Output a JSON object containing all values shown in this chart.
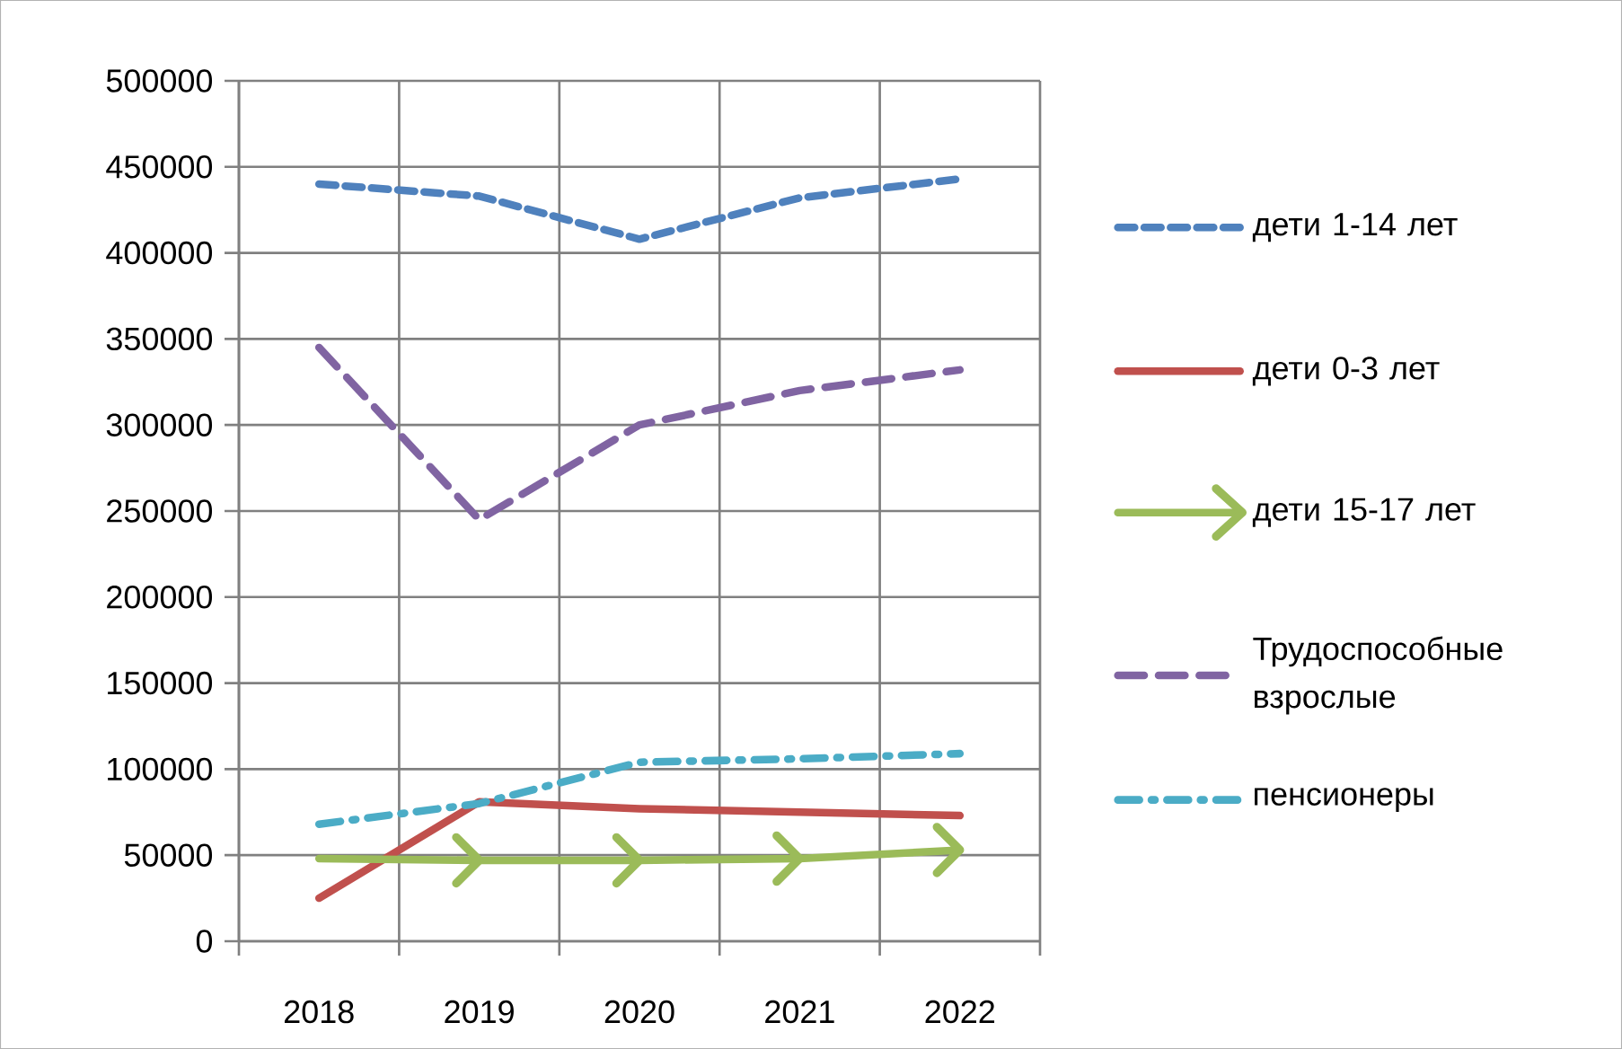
{
  "chart_data": {
    "type": "line",
    "categories": [
      "2018",
      "2019",
      "2020",
      "2021",
      "2022"
    ],
    "series": [
      {
        "name": "дети 1-14 лет",
        "color": "#4f81bd",
        "line_style": "dashed",
        "values": [
          440000,
          433000,
          408000,
          432000,
          443000
        ]
      },
      {
        "name": "дети 0-3 лет",
        "color": "#c0504d",
        "line_style": "solid",
        "values": [
          25000,
          81000,
          77000,
          75000,
          73000
        ]
      },
      {
        "name": "дети 15-17 лет",
        "color": "#9bbb59",
        "line_style": "solid",
        "marker": "cross",
        "values": [
          48000,
          47000,
          47000,
          48000,
          53000
        ]
      },
      {
        "name": "Трудоспособные взрослые",
        "color": "#8064a2",
        "line_style": "dashed",
        "values": [
          345000,
          245000,
          300000,
          320000,
          332000
        ]
      },
      {
        "name": "пенсионеры",
        "color": "#4bacc6",
        "line_style": "dashdot",
        "values": [
          68000,
          80000,
          104000,
          106000,
          109000
        ]
      }
    ],
    "ylim": [
      0,
      500000
    ],
    "yticks": [
      0,
      50000,
      100000,
      150000,
      200000,
      250000,
      300000,
      350000,
      400000,
      450000,
      500000
    ],
    "grid": true,
    "legend": "right"
  }
}
